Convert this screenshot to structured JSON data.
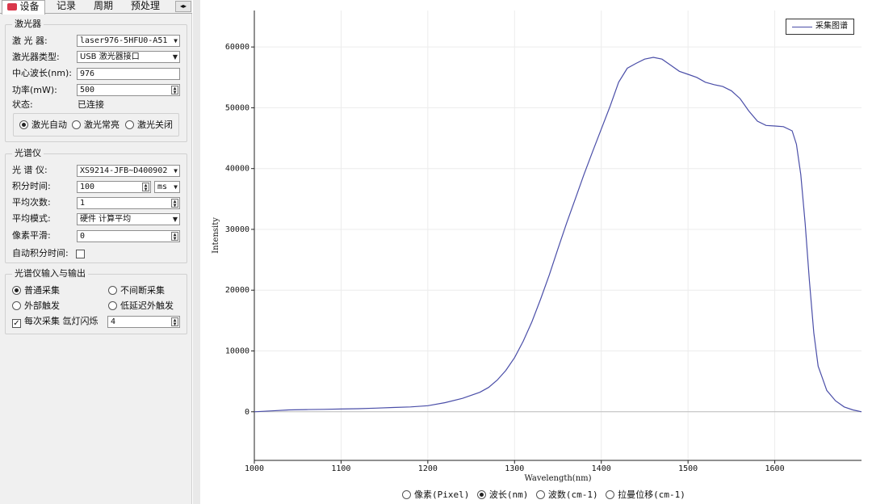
{
  "tabs": [
    {
      "label": "设备",
      "active": true
    },
    {
      "label": "记录",
      "active": false
    },
    {
      "label": "周期",
      "active": false
    },
    {
      "label": "预处理",
      "active": false
    }
  ],
  "laser": {
    "group_title": "激光器",
    "device_label": "激 光 器:",
    "device_value": "laser976-5HFU0-A51",
    "type_label": "激光器类型:",
    "type_value": "USB 激光器接口",
    "wavelength_label": "中心波长(nm):",
    "wavelength_value": "976",
    "power_label": "功率(mW):",
    "power_value": "500",
    "status_label": "状态:",
    "status_value": "已连接",
    "modes": [
      "激光自动",
      "激光常亮",
      "激光关闭"
    ],
    "mode_selected": 0
  },
  "spectrometer": {
    "group_title": "光谱仪",
    "device_label": "光 谱 仪:",
    "device_value": "XS9214-JFB~D400902",
    "integration_label": "积分时间:",
    "integration_value": "100",
    "integration_unit": "ms",
    "avg_count_label": "平均次数:",
    "avg_count_value": "1",
    "avg_mode_label": "平均模式:",
    "avg_mode_value": "硬件 计算平均",
    "smoothing_label": "像素平滑:",
    "smoothing_value": "0",
    "auto_integration_label": "自动积分时间:"
  },
  "io": {
    "group_title": "光谱仪输入与输出",
    "normal_acq": "普通采集",
    "continuous_acq": "不间断采集",
    "ext_trigger": "外部触发",
    "low_delay_trigger": "低延迟外触发",
    "lamp_flash_label": "每次采集 氙灯闪烁",
    "lamp_flash_value": "4"
  },
  "xaxis_modes": [
    "像素(Pixel)",
    "波长(nm)",
    "波数(cm-1)",
    "拉曼位移(cm-1)"
  ],
  "xaxis_mode_selected": 1,
  "chart_data": {
    "type": "line",
    "title": "",
    "xlabel": "Wavelength(nm)",
    "ylabel": "Intensity",
    "xlim": [
      1000,
      1700
    ],
    "ylim": [
      -8000,
      66000
    ],
    "xticks": [
      1000,
      1100,
      1200,
      1300,
      1400,
      1500,
      1600
    ],
    "yticks": [
      0,
      10000,
      20000,
      30000,
      40000,
      50000,
      60000
    ],
    "grid": true,
    "legend_position": "top-right",
    "series": [
      {
        "name": "采集图谱",
        "color": "#4a4ea8",
        "x": [
          1000,
          1020,
          1040,
          1060,
          1080,
          1100,
          1120,
          1140,
          1160,
          1180,
          1200,
          1220,
          1240,
          1260,
          1270,
          1280,
          1290,
          1300,
          1310,
          1320,
          1330,
          1340,
          1350,
          1360,
          1370,
          1380,
          1390,
          1400,
          1410,
          1420,
          1430,
          1440,
          1450,
          1460,
          1470,
          1480,
          1490,
          1500,
          1510,
          1520,
          1530,
          1540,
          1550,
          1560,
          1570,
          1580,
          1590,
          1600,
          1610,
          1620,
          1625,
          1630,
          1635,
          1640,
          1645,
          1650,
          1660,
          1670,
          1680,
          1690,
          1700
        ],
        "y": [
          0,
          150,
          300,
          350,
          400,
          450,
          500,
          600,
          700,
          800,
          1000,
          1500,
          2200,
          3200,
          4000,
          5200,
          6800,
          8900,
          11600,
          14800,
          18500,
          22500,
          26800,
          31000,
          35000,
          39000,
          42800,
          46500,
          50200,
          54200,
          56500,
          57300,
          58000,
          58300,
          58000,
          57000,
          56000,
          55500,
          55000,
          54200,
          53800,
          53500,
          52800,
          51500,
          49500,
          47800,
          47100,
          47000,
          46900,
          46200,
          44000,
          39000,
          31000,
          21500,
          13000,
          7500,
          3500,
          1800,
          800,
          300,
          0
        ]
      }
    ]
  }
}
